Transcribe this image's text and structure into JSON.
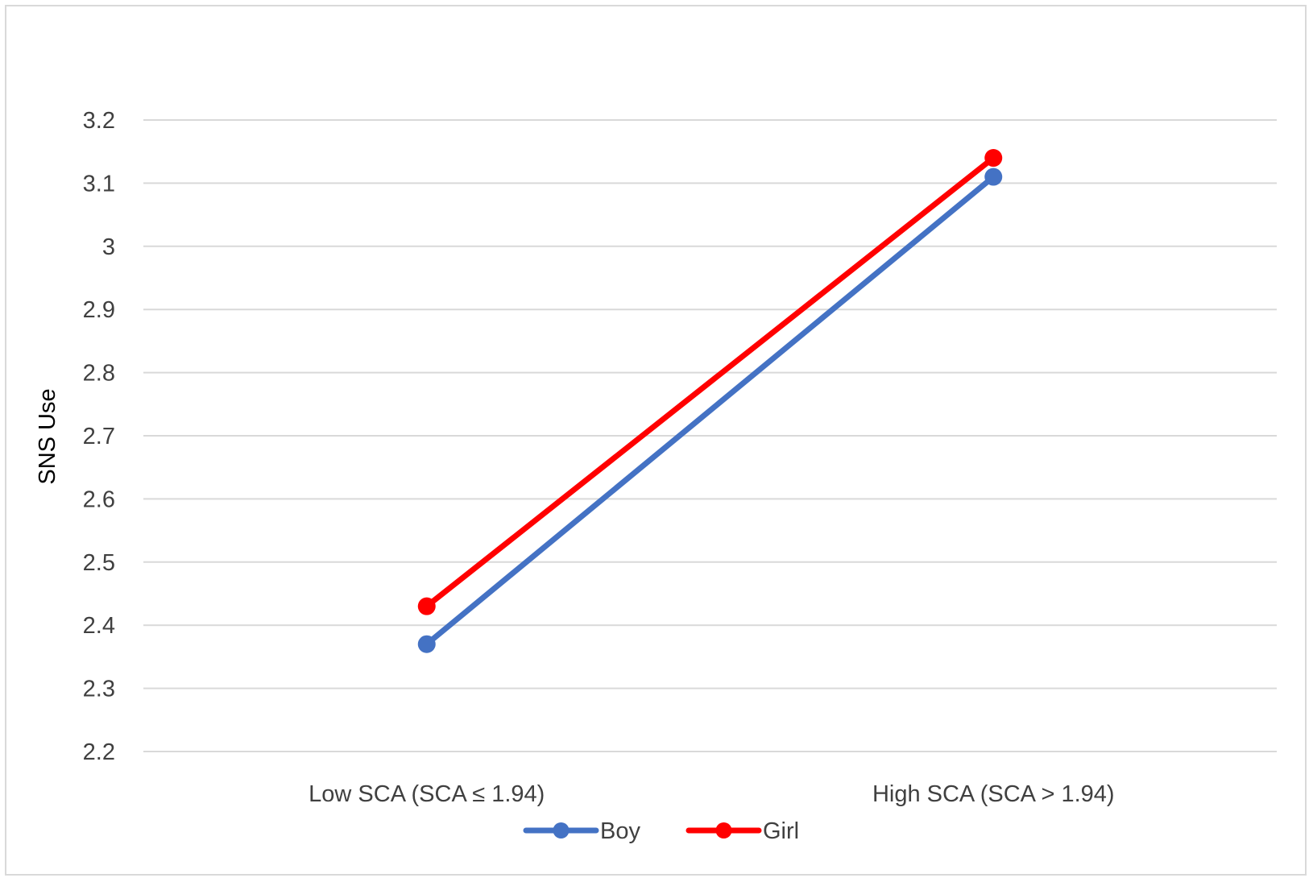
{
  "chart_data": {
    "type": "line",
    "categories": [
      "Low SCA (SCA ≤ 1.94)",
      "High SCA (SCA > 1.94)"
    ],
    "series": [
      {
        "name": "Boy",
        "values": [
          2.37,
          3.11
        ],
        "color": "#4472c4"
      },
      {
        "name": "Girl",
        "values": [
          2.43,
          3.14
        ],
        "color": "#ff0000"
      }
    ],
    "ylabel": "SNS Use",
    "xlabel": "",
    "title": "",
    "ylim": [
      2.2,
      3.2
    ],
    "yticks": [
      "2.2",
      "2.3",
      "2.4",
      "2.5",
      "2.6",
      "2.7",
      "2.8",
      "2.9",
      "3",
      "3.1",
      "3.2"
    ],
    "grid": true,
    "legend_position": "bottom",
    "gridline_color": "#d9d9d9"
  }
}
